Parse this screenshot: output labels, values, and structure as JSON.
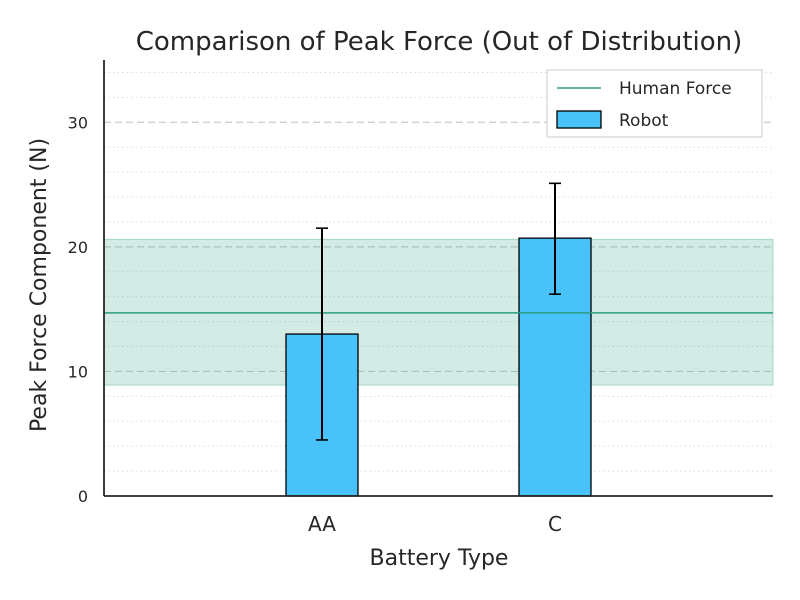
{
  "chart_data": {
    "type": "bar",
    "title": "Comparison of Peak Force (Out of Distribution)",
    "xlabel": "Battery Type",
    "ylabel": "Peak Force Component (N)",
    "categories": [
      "AA",
      "C"
    ],
    "ylim": [
      0,
      35
    ],
    "yticks": [
      0,
      10,
      20,
      30
    ],
    "grid": true,
    "legend_position": "top-right",
    "series": [
      {
        "name": "Robot",
        "values": [
          13.0,
          20.7
        ],
        "error_low": [
          4.5,
          16.2
        ],
        "error_high": [
          21.5,
          25.1
        ],
        "color": "#48c2f9"
      }
    ],
    "reference": {
      "name": "Human Force",
      "mean": 14.7,
      "band": [
        8.9,
        20.6
      ],
      "color": "#2a9d7f"
    }
  }
}
